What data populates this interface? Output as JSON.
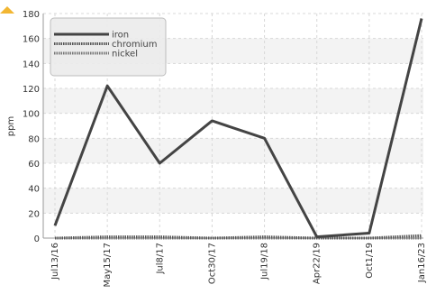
{
  "chart_data": {
    "type": "line",
    "ylabel": "ppm",
    "xlabel": "",
    "ylim": [
      0,
      180
    ],
    "yticks": [
      0,
      20,
      40,
      60,
      80,
      100,
      120,
      140,
      160,
      180
    ],
    "categories": [
      "Jul13/16",
      "May15/17",
      "Jul8/17",
      "Oct30/17",
      "Jul19/18",
      "Apr22/19",
      "Oct1/19",
      "Jan16/23"
    ],
    "grid": true,
    "legend_position": "top-left",
    "series": [
      {
        "name": "iron",
        "values": [
          10,
          122,
          60,
          94,
          80,
          1,
          4,
          176
        ],
        "color": "#444444",
        "style": "solid"
      },
      {
        "name": "chromium",
        "values": [
          0,
          1,
          1,
          0,
          1,
          0,
          0,
          2
        ],
        "color": "#555555",
        "style": "dotted"
      },
      {
        "name": "nickel",
        "values": [
          0,
          0,
          0,
          0,
          0,
          0,
          0,
          0
        ],
        "color": "#777777",
        "style": "dotted"
      }
    ]
  }
}
